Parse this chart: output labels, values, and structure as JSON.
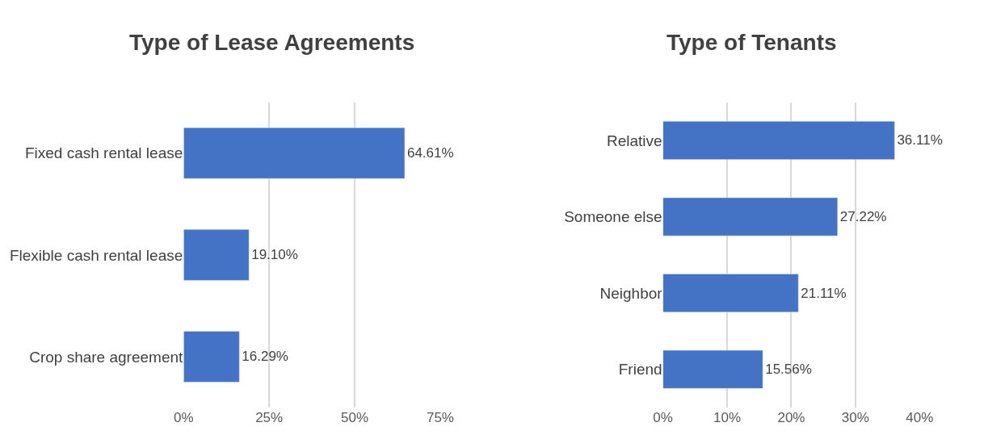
{
  "chart_data": [
    {
      "type": "bar",
      "orientation": "horizontal",
      "title": "Type of Lease Agreements",
      "categories": [
        "Fixed cash rental lease",
        "Flexible cash rental lease",
        "Crop share agreement"
      ],
      "values": [
        64.61,
        19.1,
        16.29
      ],
      "value_labels": [
        "64.61%",
        "19.10%",
        "16.29%"
      ],
      "color": "#4472c4",
      "xlim": [
        0,
        75
      ],
      "xticks": [
        {
          "value": 0,
          "label": "0%"
        },
        {
          "value": 25,
          "label": "25%"
        },
        {
          "value": 50,
          "label": "50%"
        },
        {
          "value": 75,
          "label": "75%"
        }
      ],
      "grid": "x"
    },
    {
      "type": "bar",
      "orientation": "horizontal",
      "title": "Type of Tenants",
      "categories": [
        "Relative",
        "Someone else",
        "Neighbor",
        "Friend"
      ],
      "values": [
        36.11,
        27.22,
        21.11,
        15.56
      ],
      "value_labels": [
        "36.11%",
        "27.22%",
        "21.11%",
        "15.56%"
      ],
      "color": "#4472c4",
      "xlim": [
        0,
        40
      ],
      "xticks": [
        {
          "value": 0,
          "label": "0%"
        },
        {
          "value": 10,
          "label": "10%"
        },
        {
          "value": 20,
          "label": "20%"
        },
        {
          "value": 30,
          "label": "30%"
        },
        {
          "value": 40,
          "label": "40%"
        }
      ],
      "grid": "x"
    }
  ]
}
